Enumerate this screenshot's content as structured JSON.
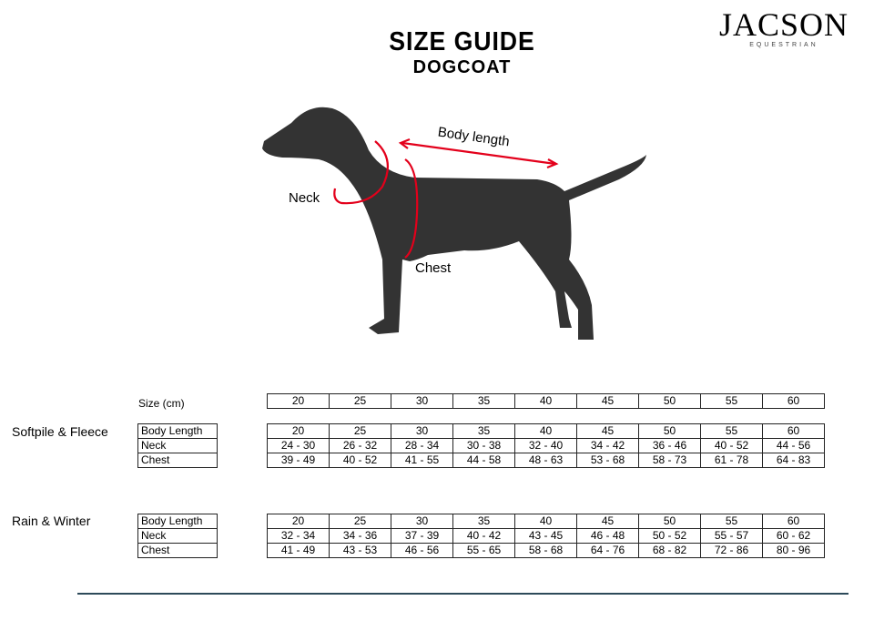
{
  "logo": {
    "brand": "JACSON",
    "sub": "EQUESTRIAN"
  },
  "title": "SIZE GUIDE",
  "subtitle": "DOGCOAT",
  "diagram": {
    "labels": {
      "body_length": "Body length",
      "neck": "Neck",
      "chest": "Chest"
    },
    "accent": "#e3001b"
  },
  "size_label": "Size (cm)",
  "sizes": [
    "20",
    "25",
    "30",
    "35",
    "40",
    "45",
    "50",
    "55",
    "60"
  ],
  "groups": [
    {
      "name": "Softpile & Fleece",
      "rows": [
        {
          "label": "Body Length",
          "values": [
            "20",
            "25",
            "30",
            "35",
            "40",
            "45",
            "50",
            "55",
            "60"
          ]
        },
        {
          "label": "Neck",
          "values": [
            "24 - 30",
            "26 - 32",
            "28 - 34",
            "30 - 38",
            "32 - 40",
            "34 - 42",
            "36 - 46",
            "40 - 52",
            "44 - 56"
          ]
        },
        {
          "label": "Chest",
          "values": [
            "39 - 49",
            "40 - 52",
            "41 - 55",
            "44 - 58",
            "48 - 63",
            "53 - 68",
            "58 - 73",
            "61 - 78",
            "64 - 83"
          ]
        }
      ]
    },
    {
      "name": "Rain & Winter",
      "rows": [
        {
          "label": "Body Length",
          "values": [
            "20",
            "25",
            "30",
            "35",
            "40",
            "45",
            "50",
            "55",
            "60"
          ]
        },
        {
          "label": "Neck",
          "values": [
            "32 - 34",
            "34 - 36",
            "37 - 39",
            "40 - 42",
            "43 - 45",
            "46 - 48",
            "50 - 52",
            "55 - 57",
            "60 - 62"
          ]
        },
        {
          "label": "Chest",
          "values": [
            "41 - 49",
            "43 - 53",
            "46 - 56",
            "55 - 65",
            "58 - 68",
            "64 - 76",
            "68 - 82",
            "72 - 86",
            "80 - 96"
          ]
        }
      ]
    }
  ]
}
